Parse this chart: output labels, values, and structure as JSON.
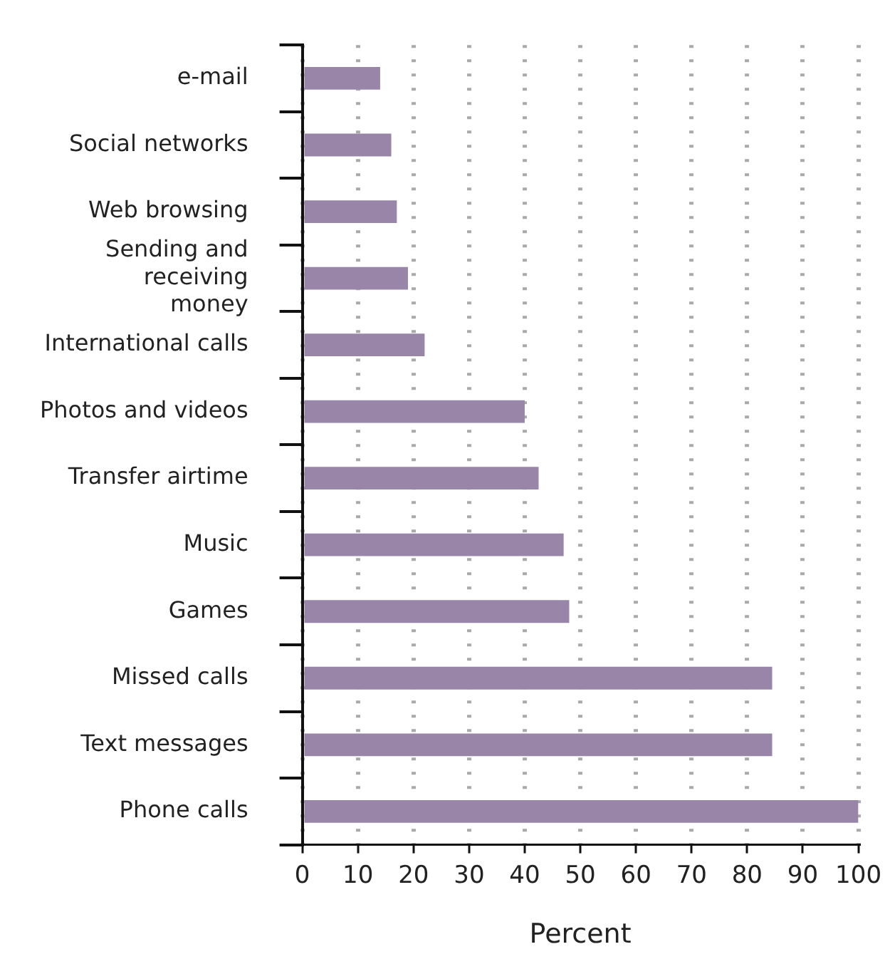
{
  "chart_data": {
    "type": "bar",
    "orientation": "horizontal",
    "xlabel": "Percent",
    "categories": [
      "e-mail",
      "Social networks",
      "Web browsing",
      "Sending and receiving money",
      "International calls",
      "Photos and videos",
      "Transfer airtime",
      "Music",
      "Games",
      "Missed calls",
      "Text messages",
      "Phone calls"
    ],
    "values": [
      14,
      16,
      17,
      19,
      22,
      40,
      42.5,
      47,
      48,
      84.5,
      84.5,
      100
    ],
    "color": "#9985a8",
    "xlim": [
      0,
      100
    ],
    "xticks": [
      0,
      10,
      20,
      30,
      40,
      50,
      60,
      70,
      80,
      90,
      100
    ],
    "grid": "x",
    "legend": false
  }
}
